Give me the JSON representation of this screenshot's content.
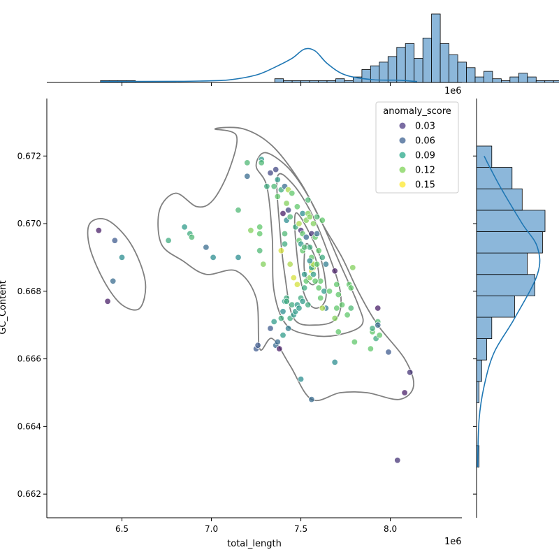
{
  "chart_data": {
    "type": "scatter",
    "title": "",
    "xlabel": "total_length",
    "ylabel": "GC_Content",
    "x_offset_label": "1e6",
    "hist_offset_label": "1e6",
    "xlim": [
      6.08,
      8.4
    ],
    "ylim": [
      0.6613,
      0.6737
    ],
    "x_ticks": [
      "6.5",
      "7.0",
      "7.5",
      "8.0"
    ],
    "y_ticks": [
      "0.662",
      "0.664",
      "0.666",
      "0.668",
      "0.670",
      "0.672"
    ],
    "x_tick_values": [
      6.5,
      7.0,
      7.5,
      8.0
    ],
    "y_tick_values": [
      0.662,
      0.664,
      0.666,
      0.668,
      0.67,
      0.672
    ],
    "legend": {
      "title": "anomaly_score",
      "placement": "top-right",
      "entries": [
        {
          "label": "0.03",
          "color": "#46337e"
        },
        {
          "label": "0.06",
          "color": "#365c8d"
        },
        {
          "label": "0.09",
          "color": "#21a585"
        },
        {
          "label": "0.12",
          "color": "#7ad151"
        },
        {
          "label": "0.15",
          "color": "#fde725"
        }
      ]
    },
    "points": [
      [
        6.37,
        0.6698,
        0.02
      ],
      [
        6.46,
        0.6695,
        0.05
      ],
      [
        6.5,
        0.669,
        0.08
      ],
      [
        6.45,
        0.6683,
        0.06
      ],
      [
        6.42,
        0.6677,
        0.02
      ],
      [
        6.76,
        0.6695,
        0.1
      ],
      [
        6.85,
        0.6699,
        0.09
      ],
      [
        6.88,
        0.6697,
        0.1
      ],
      [
        6.89,
        0.6696,
        0.11
      ],
      [
        6.97,
        0.6693,
        0.06
      ],
      [
        7.01,
        0.669,
        0.08
      ],
      [
        7.15,
        0.6704,
        0.11
      ],
      [
        7.15,
        0.669,
        0.08
      ],
      [
        7.2,
        0.6718,
        0.11
      ],
      [
        7.2,
        0.6714,
        0.06
      ],
      [
        7.22,
        0.6698,
        0.13
      ],
      [
        7.27,
        0.6699,
        0.12
      ],
      [
        7.27,
        0.6697,
        0.12
      ],
      [
        7.27,
        0.6692,
        0.11
      ],
      [
        7.28,
        0.6719,
        0.09
      ],
      [
        7.28,
        0.6718,
        0.11
      ],
      [
        7.29,
        0.6688,
        0.13
      ],
      [
        7.31,
        0.6711,
        0.1
      ],
      [
        7.33,
        0.6715,
        0.04
      ],
      [
        7.35,
        0.6711,
        0.11
      ],
      [
        7.36,
        0.6716,
        0.04
      ],
      [
        7.37,
        0.6713,
        0.09
      ],
      [
        7.37,
        0.6708,
        0.12
      ],
      [
        7.39,
        0.671,
        0.1
      ],
      [
        7.4,
        0.6703,
        0.02
      ],
      [
        7.41,
        0.6711,
        0.06
      ],
      [
        7.42,
        0.6706,
        0.13
      ],
      [
        7.43,
        0.6704,
        0.04
      ],
      [
        7.42,
        0.6701,
        0.08
      ],
      [
        7.41,
        0.6697,
        0.11
      ],
      [
        7.39,
        0.6692,
        0.15
      ],
      [
        7.41,
        0.6694,
        0.1
      ],
      [
        7.43,
        0.671,
        0.14
      ],
      [
        7.44,
        0.6702,
        0.11
      ],
      [
        7.45,
        0.6709,
        0.12
      ],
      [
        7.47,
        0.6699,
        0.1
      ],
      [
        7.48,
        0.6705,
        0.12
      ],
      [
        7.49,
        0.67,
        0.14
      ],
      [
        7.49,
        0.6695,
        0.12
      ],
      [
        7.5,
        0.6698,
        0.03
      ],
      [
        7.51,
        0.6703,
        0.08
      ],
      [
        7.51,
        0.6697,
        0.12
      ],
      [
        7.51,
        0.6692,
        0.12
      ],
      [
        7.53,
        0.6701,
        0.13
      ],
      [
        7.53,
        0.6696,
        0.06
      ],
      [
        7.54,
        0.6703,
        0.13
      ],
      [
        7.54,
        0.6707,
        0.11
      ],
      [
        7.55,
        0.6702,
        0.13
      ],
      [
        7.55,
        0.6693,
        0.1
      ],
      [
        7.56,
        0.6697,
        0.03
      ],
      [
        7.56,
        0.669,
        0.12
      ],
      [
        7.56,
        0.6688,
        0.14
      ],
      [
        7.56,
        0.6686,
        0.15
      ],
      [
        7.57,
        0.67,
        0.13
      ],
      [
        7.57,
        0.6687,
        0.14
      ],
      [
        7.58,
        0.6696,
        0.12
      ],
      [
        7.59,
        0.6697,
        0.06
      ],
      [
        7.59,
        0.6702,
        0.11
      ],
      [
        7.6,
        0.6692,
        0.12
      ],
      [
        7.61,
        0.6683,
        0.12
      ],
      [
        7.61,
        0.6678,
        0.12
      ],
      [
        7.62,
        0.669,
        0.1
      ],
      [
        7.62,
        0.6701,
        0.12
      ],
      [
        7.63,
        0.668,
        0.09
      ],
      [
        7.64,
        0.6675,
        0.07
      ],
      [
        7.64,
        0.6688,
        0.07
      ],
      [
        7.66,
        0.668,
        0.12
      ],
      [
        7.69,
        0.6686,
        0.02
      ],
      [
        7.69,
        0.6672,
        0.13
      ],
      [
        7.7,
        0.6682,
        0.12
      ],
      [
        7.7,
        0.6675,
        0.12
      ],
      [
        7.71,
        0.6668,
        0.12
      ],
      [
        7.71,
        0.6679,
        0.12
      ],
      [
        7.73,
        0.6676,
        0.12
      ],
      [
        7.76,
        0.6673,
        0.12
      ],
      [
        7.77,
        0.6682,
        0.12
      ],
      [
        7.78,
        0.6681,
        0.12
      ],
      [
        7.78,
        0.6675,
        0.11
      ],
      [
        7.79,
        0.6687,
        0.13
      ],
      [
        7.8,
        0.6665,
        0.12
      ],
      [
        7.89,
        0.6663,
        0.12
      ],
      [
        7.9,
        0.6668,
        0.12
      ],
      [
        7.9,
        0.6669,
        0.1
      ],
      [
        7.92,
        0.6666,
        0.1
      ],
      [
        7.93,
        0.6671,
        0.11
      ],
      [
        7.93,
        0.667,
        0.06
      ],
      [
        7.93,
        0.6675,
        0.02
      ],
      [
        7.94,
        0.6667,
        0.12
      ],
      [
        7.99,
        0.6662,
        0.05
      ],
      [
        8.04,
        0.663,
        0.03
      ],
      [
        8.08,
        0.665,
        0.02
      ],
      [
        8.11,
        0.6656,
        0.03
      ],
      [
        7.69,
        0.6659,
        0.08
      ],
      [
        7.5,
        0.6654,
        0.08
      ],
      [
        7.56,
        0.6648,
        0.06
      ],
      [
        7.25,
        0.6663,
        0.05
      ],
      [
        7.26,
        0.6664,
        0.05
      ],
      [
        7.33,
        0.6669,
        0.05
      ],
      [
        7.35,
        0.6671,
        0.09
      ],
      [
        7.36,
        0.6664,
        0.06
      ],
      [
        7.37,
        0.6665,
        0.06
      ],
      [
        7.38,
        0.6663,
        0.02
      ],
      [
        7.39,
        0.6672,
        0.1
      ],
      [
        7.4,
        0.6674,
        0.08
      ],
      [
        7.4,
        0.6667,
        0.09
      ],
      [
        7.41,
        0.6677,
        0.09
      ],
      [
        7.42,
        0.6678,
        0.1
      ],
      [
        7.42,
        0.6677,
        0.1
      ],
      [
        7.43,
        0.6669,
        0.07
      ],
      [
        7.44,
        0.6672,
        0.1
      ],
      [
        7.45,
        0.6676,
        0.1
      ],
      [
        7.46,
        0.6673,
        0.09
      ],
      [
        7.47,
        0.6674,
        0.09
      ],
      [
        7.48,
        0.6676,
        0.09
      ],
      [
        7.49,
        0.6675,
        0.09
      ],
      [
        7.5,
        0.6678,
        0.1
      ],
      [
        7.51,
        0.6677,
        0.09
      ],
      [
        7.52,
        0.6681,
        0.1
      ],
      [
        7.52,
        0.6685,
        0.09
      ],
      [
        7.53,
        0.6683,
        0.12
      ],
      [
        7.54,
        0.6676,
        0.1
      ],
      [
        7.55,
        0.6684,
        0.13
      ],
      [
        7.56,
        0.6687,
        0.09
      ],
      [
        7.57,
        0.6688,
        0.14
      ],
      [
        7.58,
        0.6683,
        0.12
      ],
      [
        7.48,
        0.6682,
        0.15
      ],
      [
        7.44,
        0.6688,
        0.14
      ],
      [
        7.46,
        0.6684,
        0.15
      ],
      [
        7.5,
        0.6694,
        0.09
      ],
      [
        7.52,
        0.6693,
        0.11
      ],
      [
        7.55,
        0.6689,
        0.08
      ],
      [
        7.57,
        0.6685,
        0.09
      ],
      [
        7.59,
        0.6688,
        0.12
      ],
      [
        7.6,
        0.6681,
        0.12
      ],
      [
        7.62,
        0.6675,
        0.14
      ]
    ],
    "contours": [
      [
        [
          7.02,
          0.6728
        ],
        [
          7.18,
          0.6728
        ],
        [
          7.34,
          0.6723
        ],
        [
          7.5,
          0.6712
        ],
        [
          7.62,
          0.67
        ],
        [
          7.73,
          0.669
        ],
        [
          7.82,
          0.668
        ],
        [
          7.93,
          0.667
        ],
        [
          8.08,
          0.666
        ],
        [
          8.13,
          0.6652
        ],
        [
          8.05,
          0.6648
        ],
        [
          7.87,
          0.665
        ],
        [
          7.72,
          0.665
        ],
        [
          7.56,
          0.6648
        ],
        [
          7.44,
          0.6658
        ],
        [
          7.34,
          0.6666
        ],
        [
          7.27,
          0.6663
        ],
        [
          7.25,
          0.6678
        ],
        [
          7.14,
          0.6686
        ],
        [
          6.97,
          0.6685
        ],
        [
          6.84,
          0.6689
        ],
        [
          6.72,
          0.6694
        ],
        [
          6.71,
          0.6704
        ],
        [
          6.8,
          0.6709
        ],
        [
          6.92,
          0.6705
        ],
        [
          7.01,
          0.6707
        ],
        [
          7.1,
          0.6716
        ],
        [
          7.14,
          0.6726
        ]
      ],
      [
        [
          7.3,
          0.6721
        ],
        [
          7.42,
          0.6717
        ],
        [
          7.52,
          0.671
        ],
        [
          7.62,
          0.67
        ],
        [
          7.72,
          0.6688
        ],
        [
          7.82,
          0.6676
        ],
        [
          7.84,
          0.667
        ],
        [
          7.7,
          0.6667
        ],
        [
          7.56,
          0.6667
        ],
        [
          7.42,
          0.667
        ],
        [
          7.35,
          0.668
        ],
        [
          7.34,
          0.6696
        ],
        [
          7.31,
          0.6711
        ],
        [
          7.25,
          0.6717
        ]
      ],
      [
        [
          7.37,
          0.6714
        ],
        [
          7.45,
          0.6712
        ],
        [
          7.55,
          0.6704
        ],
        [
          7.64,
          0.6693
        ],
        [
          7.72,
          0.668
        ],
        [
          7.7,
          0.6672
        ],
        [
          7.58,
          0.667
        ],
        [
          7.46,
          0.6672
        ],
        [
          7.41,
          0.6685
        ],
        [
          7.38,
          0.67
        ]
      ],
      [
        [
          7.47,
          0.6703
        ],
        [
          7.55,
          0.6697
        ],
        [
          7.62,
          0.6688
        ],
        [
          7.64,
          0.6678
        ],
        [
          7.58,
          0.6675
        ],
        [
          7.52,
          0.6679
        ],
        [
          7.48,
          0.669
        ]
      ],
      [
        [
          7.53,
          0.6694
        ],
        [
          7.58,
          0.669
        ],
        [
          7.6,
          0.6684
        ],
        [
          7.56,
          0.6682
        ],
        [
          7.52,
          0.6686
        ]
      ],
      [
        [
          6.32,
          0.67
        ],
        [
          6.42,
          0.6701
        ],
        [
          6.55,
          0.6694
        ],
        [
          6.63,
          0.6683
        ],
        [
          6.6,
          0.6675
        ],
        [
          6.5,
          0.6676
        ],
        [
          6.4,
          0.6683
        ],
        [
          6.32,
          0.6693
        ]
      ]
    ],
    "top_histogram": {
      "bin_start": 6.38,
      "bin_width": 0.0487,
      "counts": [
        1,
        1,
        1,
        1,
        0,
        0,
        0,
        0,
        0,
        0,
        0,
        0,
        0,
        0,
        0,
        0,
        0,
        0,
        0,
        0,
        2,
        1,
        1,
        1,
        1,
        1,
        1,
        2,
        1,
        3,
        7,
        9,
        11,
        14,
        19,
        21,
        13,
        24,
        37,
        21,
        15,
        11,
        8,
        3,
        6,
        2,
        1,
        3,
        5,
        3,
        1,
        1,
        1,
        1
      ]
    },
    "right_histogram": {
      "bin_start": 0.6628,
      "bin_width": 0.000633,
      "counts": [
        1,
        0,
        0,
        1,
        2,
        4,
        6,
        15,
        23,
        20,
        26,
        27,
        18,
        14,
        6
      ]
    },
    "kde_x": [
      [
        6.38,
        0.5
      ],
      [
        6.8,
        0.6
      ],
      [
        6.95,
        0.8
      ],
      [
        7.1,
        1.4
      ],
      [
        7.25,
        4
      ],
      [
        7.35,
        8
      ],
      [
        7.45,
        13
      ],
      [
        7.52,
        18
      ],
      [
        7.58,
        17
      ],
      [
        7.65,
        10
      ],
      [
        7.75,
        4
      ],
      [
        7.9,
        1.5
      ],
      [
        8.05,
        1.2
      ],
      [
        8.15,
        0.5
      ]
    ],
    "kde_y": [
      [
        0.6628,
        0.4
      ],
      [
        0.6642,
        1
      ],
      [
        0.6652,
        3
      ],
      [
        0.6662,
        7
      ],
      [
        0.6672,
        15
      ],
      [
        0.6685,
        24
      ],
      [
        0.6693,
        24
      ],
      [
        0.67,
        18
      ],
      [
        0.671,
        10
      ],
      [
        0.6717,
        5
      ],
      [
        0.672,
        3
      ]
    ]
  }
}
